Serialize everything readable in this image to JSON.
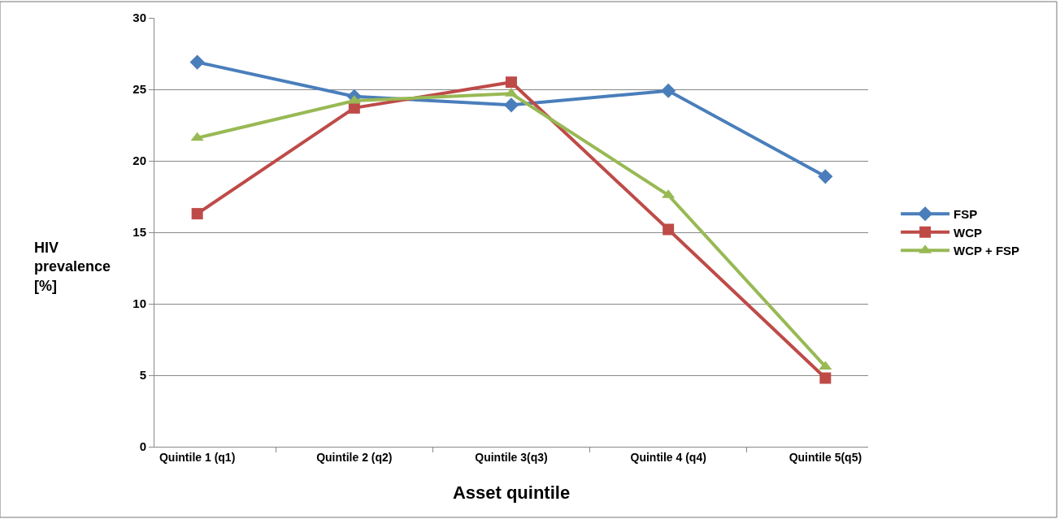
{
  "chart_data": {
    "type": "line",
    "xlabel": "Asset quintile",
    "ylabel": "HIV prevalence [%]",
    "categories": [
      "Quintile 1 (q1)",
      "Quintile 2 (q2)",
      "Quintile 3(q3)",
      "Quintile 4 (q4)",
      "Quintile 5(q5)"
    ],
    "series": [
      {
        "name": "FSP",
        "color": "#4a7ebb",
        "marker": "diamond",
        "values": [
          26.9,
          24.5,
          23.9,
          24.9,
          18.9
        ]
      },
      {
        "name": "WCP",
        "color": "#be4b48",
        "marker": "square",
        "values": [
          16.3,
          23.7,
          25.5,
          15.2,
          4.8
        ]
      },
      {
        "name": "WCP + FSP",
        "color": "#98b954",
        "marker": "triangle",
        "values": [
          21.6,
          24.2,
          24.7,
          17.6,
          5.6
        ]
      }
    ],
    "ylim": [
      0,
      30
    ],
    "yticks": [
      0,
      5,
      10,
      15,
      20,
      25,
      30
    ],
    "grid": "y",
    "legend": "right",
    "line_style": "solid"
  }
}
